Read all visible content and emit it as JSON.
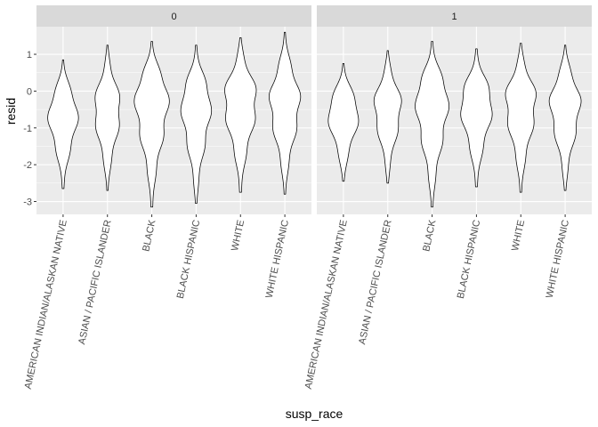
{
  "chart_data": {
    "type": "violin",
    "facet_variable": "",
    "xlabel": "susp_race",
    "ylabel": "resid",
    "categories": [
      "AMERICAN INDIAN/ALASKAN NATIVE",
      "ASIAN / PACIFIC ISLANDER",
      "BLACK",
      "BLACK HISPANIC",
      "WHITE",
      "WHITE HISPANIC"
    ],
    "ylim": [
      -3.35,
      1.75
    ],
    "yticks": [
      -3,
      -2,
      -1,
      0,
      1
    ],
    "grid": true,
    "legend": "none",
    "colors": {
      "panel_bg": "#ebebeb",
      "strip_bg": "#d9d9d9",
      "grid_major": "#ffffff",
      "violin_fill": "#ffffff",
      "violin_stroke": "#000000",
      "tick_text": "#4d4d4d"
    },
    "panels": [
      {
        "label": "0",
        "violins": [
          {
            "category": "AMERICAN INDIAN/ALASKAN NATIVE",
            "min": -2.65,
            "max": 0.85,
            "mode": -0.6,
            "max_width": 0.77
          },
          {
            "category": "ASIAN / PACIFIC ISLANDER",
            "min": -2.7,
            "max": 1.25,
            "mode": -0.45,
            "max_width": 0.62
          },
          {
            "category": "BLACK",
            "min": -3.15,
            "max": 1.35,
            "mode": -0.15,
            "max_width": 0.88
          },
          {
            "category": "BLACK HISPANIC",
            "min": -3.05,
            "max": 1.25,
            "mode": -0.3,
            "max_width": 0.77
          },
          {
            "category": "WHITE",
            "min": -2.75,
            "max": 1.45,
            "mode": -0.2,
            "max_width": 0.79
          },
          {
            "category": "WHITE HISPANIC",
            "min": -2.8,
            "max": 1.6,
            "mode": -0.25,
            "max_width": 0.79
          }
        ]
      },
      {
        "label": "1",
        "violins": [
          {
            "category": "AMERICAN INDIAN/ALASKAN NATIVE",
            "min": -2.45,
            "max": 0.75,
            "mode": -0.55,
            "max_width": 0.76
          },
          {
            "category": "ASIAN / PACIFIC ISLANDER",
            "min": -2.5,
            "max": 1.1,
            "mode": -0.4,
            "max_width": 0.69
          },
          {
            "category": "BLACK",
            "min": -3.15,
            "max": 1.35,
            "mode": -0.2,
            "max_width": 0.85
          },
          {
            "category": "BLACK HISPANIC",
            "min": -2.6,
            "max": 1.15,
            "mode": -0.3,
            "max_width": 0.79
          },
          {
            "category": "WHITE",
            "min": -2.75,
            "max": 1.3,
            "mode": -0.25,
            "max_width": 0.77
          },
          {
            "category": "WHITE HISPANIC",
            "min": -2.7,
            "max": 1.25,
            "mode": -0.3,
            "max_width": 0.8
          }
        ]
      }
    ]
  }
}
